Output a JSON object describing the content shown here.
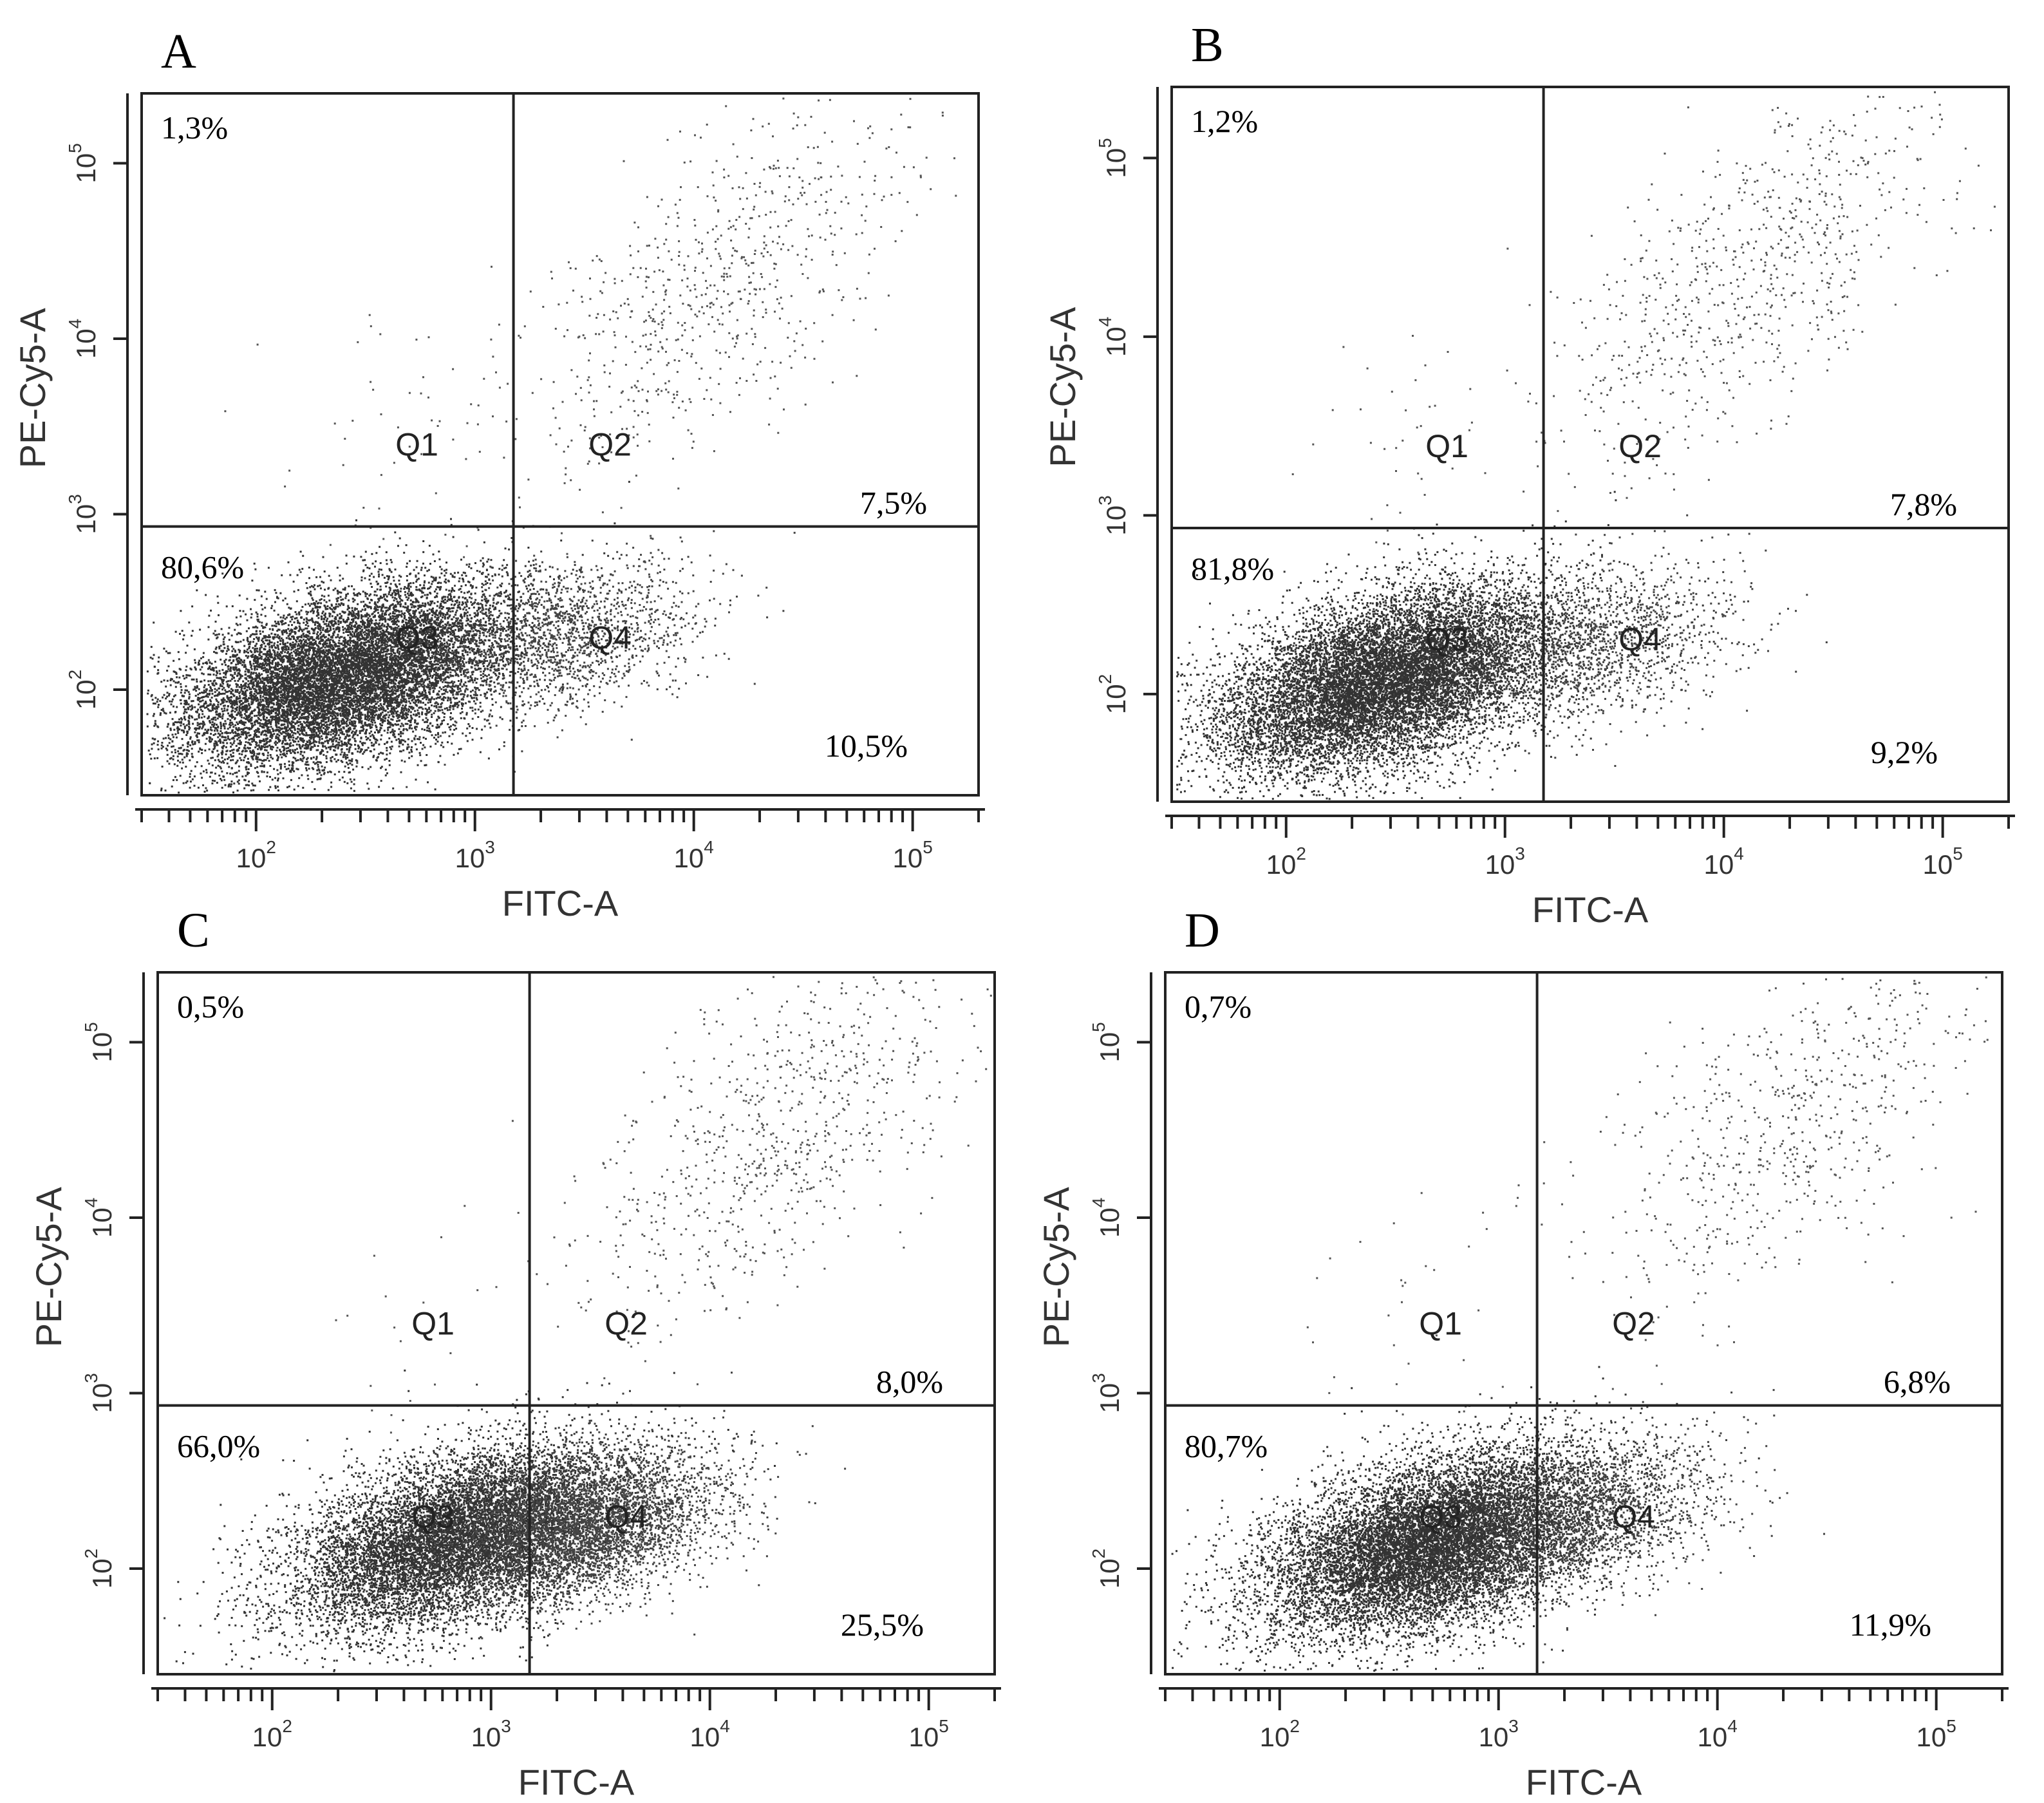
{
  "chart_data": [
    {
      "type": "scatter",
      "panel": "A",
      "xlabel": "FITC-A",
      "ylabel": "PE-Cy5-A",
      "x_scale": "log",
      "y_scale": "log",
      "xlim": [
        30,
        200000
      ],
      "ylim": [
        25,
        250000
      ],
      "x_ticks": [
        100,
        1000,
        10000,
        100000
      ],
      "y_ticks": [
        100,
        1000,
        10000,
        100000
      ],
      "gate": {
        "x": 1500,
        "y": 850
      },
      "quadrants": [
        {
          "name": "Q1",
          "percent": "1,3%"
        },
        {
          "name": "Q2",
          "percent": "7,5%"
        },
        {
          "name": "Q3",
          "percent": "80,6%"
        },
        {
          "name": "Q4",
          "percent": "10,5%"
        }
      ],
      "populations": {
        "main": {
          "x": 250,
          "y": 120,
          "n": 12000
        },
        "q4": {
          "x": 2500,
          "y": 200,
          "n": 1600
        },
        "q2": {
          "x": 12000,
          "y": 20000,
          "n": 750
        },
        "q1": {
          "x": 400,
          "y": 3000,
          "n": 45
        }
      }
    },
    {
      "type": "scatter",
      "panel": "B",
      "xlabel": "FITC-A",
      "ylabel": "PE-Cy5-A",
      "x_scale": "log",
      "y_scale": "log",
      "xlim": [
        30,
        200000
      ],
      "ylim": [
        25,
        250000
      ],
      "x_ticks": [
        100,
        1000,
        10000,
        100000
      ],
      "y_ticks": [
        100,
        1000,
        10000,
        100000
      ],
      "gate": {
        "x": 1500,
        "y": 850
      },
      "quadrants": [
        {
          "name": "Q1",
          "percent": "1,2%"
        },
        {
          "name": "Q2",
          "percent": "7,8%"
        },
        {
          "name": "Q3",
          "percent": "81,8%"
        },
        {
          "name": "Q4",
          "percent": "9,2%"
        }
      ],
      "populations": {
        "main": {
          "x": 280,
          "y": 120,
          "n": 12200
        },
        "q4": {
          "x": 2600,
          "y": 190,
          "n": 1400
        },
        "q2": {
          "x": 14000,
          "y": 25000,
          "n": 780
        },
        "q1": {
          "x": 400,
          "y": 3000,
          "n": 40
        }
      }
    },
    {
      "type": "scatter",
      "panel": "C",
      "xlabel": "FITC-A",
      "ylabel": "PE-Cy5-A",
      "x_scale": "log",
      "y_scale": "log",
      "xlim": [
        30,
        200000
      ],
      "ylim": [
        25,
        250000
      ],
      "x_ticks": [
        100,
        1000,
        10000,
        100000
      ],
      "y_ticks": [
        100,
        1000,
        10000,
        100000
      ],
      "gate": {
        "x": 1500,
        "y": 850
      },
      "quadrants": [
        {
          "name": "Q1",
          "percent": "0,5%"
        },
        {
          "name": "Q2",
          "percent": "8,0%"
        },
        {
          "name": "Q3",
          "percent": "66,0%"
        },
        {
          "name": "Q4",
          "percent": "25,5%"
        }
      ],
      "populations": {
        "main": {
          "x": 700,
          "y": 150,
          "n": 9900
        },
        "q4": {
          "x": 2700,
          "y": 180,
          "n": 3800
        },
        "q2": {
          "x": 20000,
          "y": 30000,
          "n": 800
        },
        "q1": {
          "x": 400,
          "y": 3000,
          "n": 18
        }
      }
    },
    {
      "type": "scatter",
      "panel": "D",
      "xlabel": "FITC-A",
      "ylabel": "PE-Cy5-A",
      "x_scale": "log",
      "y_scale": "log",
      "xlim": [
        30,
        200000
      ],
      "ylim": [
        25,
        250000
      ],
      "x_ticks": [
        100,
        1000,
        10000,
        100000
      ],
      "y_ticks": [
        100,
        1000,
        10000,
        100000
      ],
      "gate": {
        "x": 1500,
        "y": 850
      },
      "quadrants": [
        {
          "name": "Q1",
          "percent": "0,7%"
        },
        {
          "name": "Q2",
          "percent": "6,8%"
        },
        {
          "name": "Q3",
          "percent": "80,7%"
        },
        {
          "name": "Q4",
          "percent": "11,9%"
        }
      ],
      "populations": {
        "main": {
          "x": 500,
          "y": 140,
          "n": 12100
        },
        "q4": {
          "x": 2500,
          "y": 200,
          "n": 1800
        },
        "q2": {
          "x": 22000,
          "y": 35000,
          "n": 680
        },
        "q1": {
          "x": 400,
          "y": 3000,
          "n": 25
        }
      }
    }
  ]
}
